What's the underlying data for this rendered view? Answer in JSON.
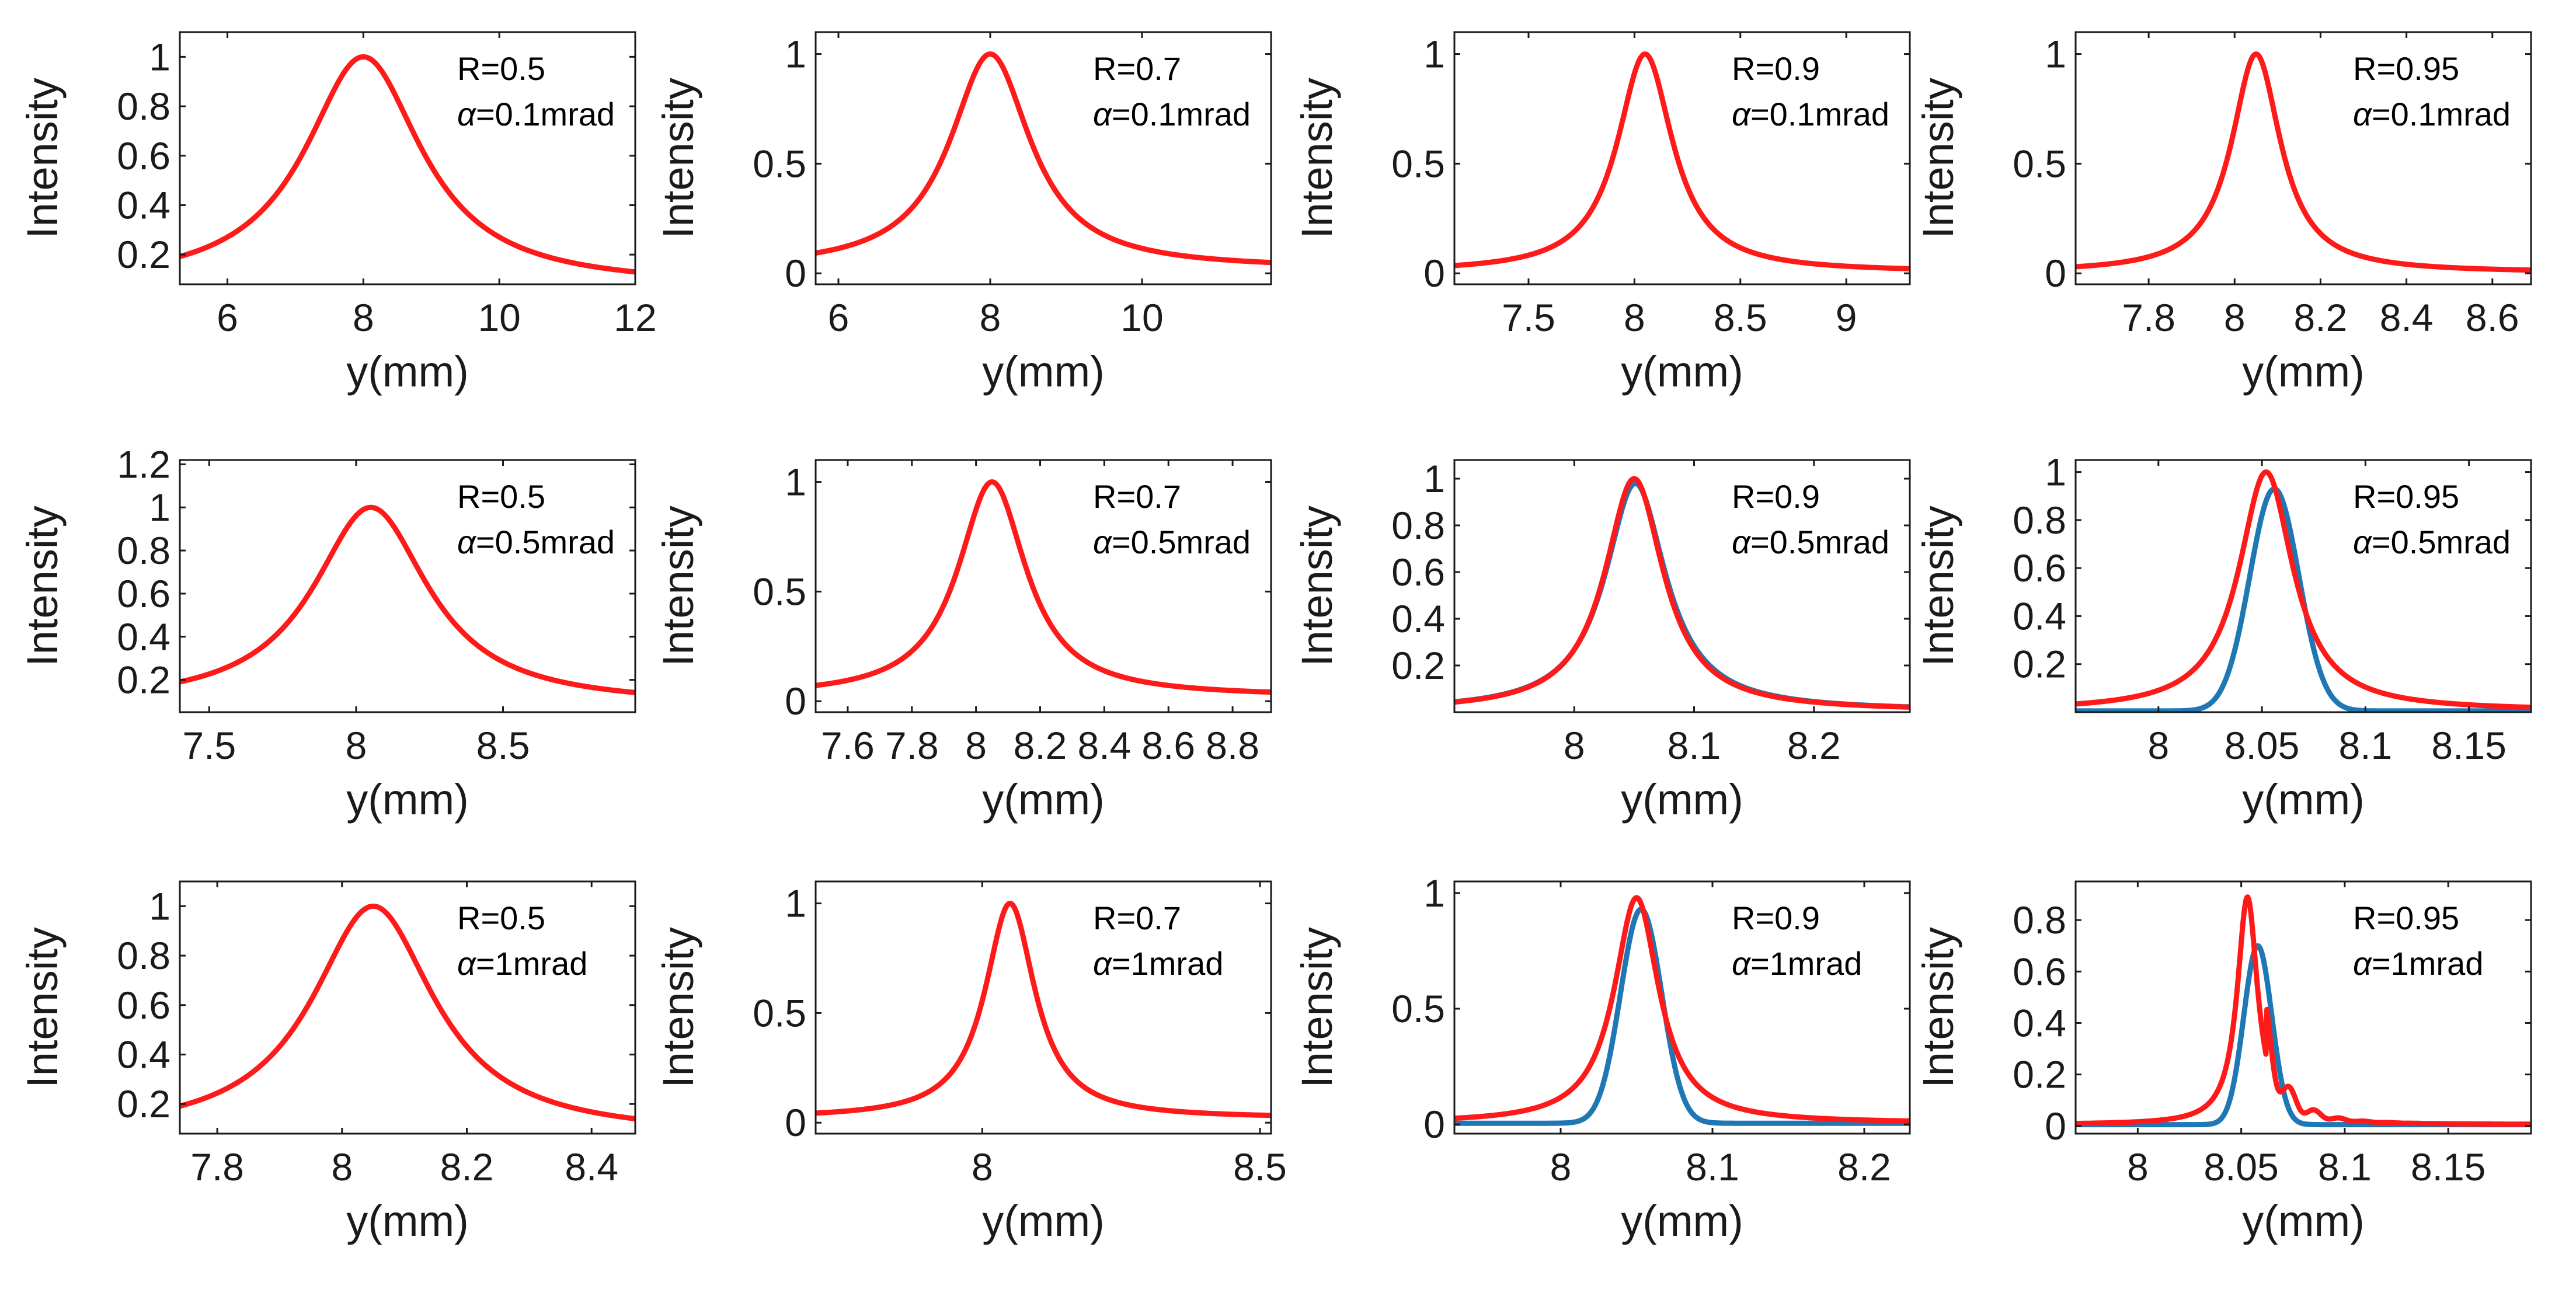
{
  "figure": {
    "colors": {
      "blue": "#1f77b4",
      "red": "#ff1a1a",
      "axis": "#1a1a1a"
    },
    "series_names": [
      "blue",
      "red"
    ]
  },
  "chart_data": [
    {
      "type": "line",
      "row": 0,
      "col": 0,
      "xlabel": "y(mm)",
      "ylabel": "Intensity",
      "xlim": [
        5.3,
        12
      ],
      "ylim": [
        0.08,
        1.1
      ],
      "xticks": [
        6,
        8,
        10,
        12
      ],
      "xtick_labels": [
        "6",
        "8",
        "10",
        "12"
      ],
      "yticks": [
        0.2,
        0.4,
        0.6,
        0.8,
        1
      ],
      "ytick_labels": [
        "0.2",
        "0.4",
        "0.6",
        "0.8",
        "1"
      ],
      "annotation": {
        "R": "R=0.5",
        "alpha": "=0.1mrad"
      },
      "series": [
        {
          "name": "red",
          "center": 8.0,
          "hw": 1.05,
          "peak": 1.0,
          "base": 0.07
        }
      ]
    },
    {
      "type": "line",
      "row": 0,
      "col": 1,
      "xlabel": "y(mm)",
      "ylabel": "Intensity",
      "xlim": [
        5.7,
        11.7
      ],
      "ylim": [
        -0.05,
        1.1
      ],
      "xticks": [
        6,
        8,
        10
      ],
      "xtick_labels": [
        "6",
        "8",
        "10"
      ],
      "yticks": [
        0,
        0.5,
        1
      ],
      "ytick_labels": [
        "0",
        "0.5",
        "1"
      ],
      "annotation": {
        "R": "R=0.7",
        "alpha": "=0.1mrad"
      },
      "series": [
        {
          "name": "red",
          "center": 8.0,
          "hw": 0.65,
          "peak": 1.0,
          "base": 0.02
        }
      ]
    },
    {
      "type": "line",
      "row": 0,
      "col": 2,
      "xlabel": "y(mm)",
      "ylabel": "Intensity",
      "xlim": [
        7.15,
        9.3
      ],
      "ylim": [
        -0.05,
        1.1
      ],
      "xticks": [
        7.5,
        8,
        8.5,
        9
      ],
      "xtick_labels": [
        "7.5",
        "8",
        "8.5",
        "9"
      ],
      "yticks": [
        0,
        0.5,
        1
      ],
      "ytick_labels": [
        "0",
        "0.5",
        "1"
      ],
      "annotation": {
        "R": "R=0.9",
        "alpha": "=0.1mrad"
      },
      "series": [
        {
          "name": "red",
          "center": 8.05,
          "hw": 0.16,
          "peak": 1.0,
          "base": 0.005
        }
      ]
    },
    {
      "type": "line",
      "row": 0,
      "col": 3,
      "xlabel": "y(mm)",
      "ylabel": "Intensity",
      "xlim": [
        7.63,
        8.69
      ],
      "ylim": [
        -0.05,
        1.1
      ],
      "xticks": [
        7.8,
        8,
        8.2,
        8.4,
        8.6
      ],
      "xtick_labels": [
        "7.8",
        "8",
        "8.2",
        "8.4",
        "8.6"
      ],
      "yticks": [
        0,
        0.5,
        1
      ],
      "ytick_labels": [
        "0",
        "0.5",
        "1"
      ],
      "annotation": {
        "R": "R=0.95",
        "alpha": "=0.1mrad"
      },
      "series": [
        {
          "name": "red",
          "center": 8.05,
          "hw": 0.07,
          "peak": 1.0,
          "base": 0.003
        }
      ]
    },
    {
      "type": "line",
      "row": 1,
      "col": 0,
      "xlabel": "y(mm)",
      "ylabel": "Intensity",
      "xlim": [
        7.4,
        8.95
      ],
      "ylim": [
        0.05,
        1.22
      ],
      "xticks": [
        7.5,
        8,
        8.5
      ],
      "xtick_labels": [
        "7.5",
        "8",
        "8.5"
      ],
      "yticks": [
        0.2,
        0.4,
        0.6,
        0.8,
        1,
        1.2
      ],
      "ytick_labels": [
        "0.2",
        "0.4",
        "0.6",
        "0.8",
        "1",
        "1.2"
      ],
      "annotation": {
        "R": "R=0.5",
        "alpha": "=0.5mrad"
      },
      "series": [
        {
          "name": "red",
          "center": 8.05,
          "hw": 0.24,
          "peak": 1.0,
          "base": 0.08
        }
      ]
    },
    {
      "type": "line",
      "row": 1,
      "col": 1,
      "xlabel": "y(mm)",
      "ylabel": "Intensity",
      "xlim": [
        7.5,
        8.92
      ],
      "ylim": [
        -0.05,
        1.1
      ],
      "xticks": [
        7.6,
        7.8,
        8,
        8.2,
        8.4,
        8.6,
        8.8
      ],
      "xtick_labels": [
        "7.6",
        "7.8",
        "8",
        "8.2",
        "8.4",
        "8.6",
        "8.8"
      ],
      "yticks": [
        0,
        0.5,
        1
      ],
      "ytick_labels": [
        "0",
        "0.5",
        "1"
      ],
      "annotation": {
        "R": "R=0.7",
        "alpha": "=0.5mrad"
      },
      "series": [
        {
          "name": "red",
          "center": 8.05,
          "hw": 0.13,
          "peak": 1.0,
          "base": 0.02
        }
      ]
    },
    {
      "type": "line",
      "row": 1,
      "col": 2,
      "xlabel": "y(mm)",
      "ylabel": "Intensity",
      "xlim": [
        7.9,
        8.28
      ],
      "ylim": [
        0.0,
        1.08
      ],
      "xticks": [
        8,
        8.1,
        8.2
      ],
      "xtick_labels": [
        "8",
        "8.1",
        "8.2"
      ],
      "yticks": [
        0.2,
        0.4,
        0.6,
        0.8,
        1
      ],
      "ytick_labels": [
        "0.2",
        "0.4",
        "0.6",
        "0.8",
        "1"
      ],
      "annotation": {
        "R": "R=0.9",
        "alpha": "=0.5mrad"
      },
      "series": [
        {
          "name": "blue",
          "center": 8.051,
          "hw": 0.031,
          "peak": 0.98,
          "base": 0.005
        },
        {
          "name": "red",
          "center": 8.05,
          "hw": 0.03,
          "peak": 1.0,
          "base": 0.005
        }
      ]
    },
    {
      "type": "line",
      "row": 1,
      "col": 3,
      "xlabel": "y(mm)",
      "ylabel": "Intensity",
      "xlim": [
        7.96,
        8.18
      ],
      "ylim": [
        0.0,
        1.05
      ],
      "xticks": [
        8,
        8.05,
        8.1,
        8.15
      ],
      "xtick_labels": [
        "8",
        "8.05",
        "8.1",
        "8.15"
      ],
      "yticks": [
        0.2,
        0.4,
        0.6,
        0.8,
        1
      ],
      "ytick_labels": [
        "0.2",
        "0.4",
        "0.6",
        "0.8",
        "1"
      ],
      "annotation": {
        "R": "R=0.95",
        "alpha": "=0.5mrad"
      },
      "series": [
        {
          "name": "blue",
          "center": 8.056,
          "hw": 0.014,
          "peak": 0.93,
          "base": 0.005,
          "gauss": true
        },
        {
          "name": "red",
          "center": 8.052,
          "hw": 0.016,
          "peak": 1.0,
          "base": 0.005
        }
      ]
    },
    {
      "type": "line",
      "row": 2,
      "col": 0,
      "xlabel": "y(mm)",
      "ylabel": "Intensity",
      "xlim": [
        7.74,
        8.47
      ],
      "ylim": [
        0.08,
        1.1
      ],
      "xticks": [
        7.8,
        8,
        8.2,
        8.4
      ],
      "xtick_labels": [
        "7.8",
        "8",
        "8.2",
        "8.4"
      ],
      "yticks": [
        0.2,
        0.4,
        0.6,
        0.8,
        1
      ],
      "ytick_labels": [
        "0.2",
        "0.4",
        "0.6",
        "0.8",
        "1"
      ],
      "annotation": {
        "R": "R=0.5",
        "alpha": "=1mrad"
      },
      "series": [
        {
          "name": "red",
          "center": 8.05,
          "hw": 0.12,
          "peak": 1.0,
          "base": 0.07
        }
      ]
    },
    {
      "type": "line",
      "row": 2,
      "col": 1,
      "xlabel": "y(mm)",
      "ylabel": "Intensity",
      "xlim": [
        7.7,
        8.52
      ],
      "ylim": [
        -0.05,
        1.1
      ],
      "xticks": [
        8,
        8.5
      ],
      "xtick_labels": [
        "8",
        "8.5"
      ],
      "yticks": [
        0,
        0.5,
        1
      ],
      "ytick_labels": [
        "0",
        "0.5",
        "1"
      ],
      "annotation": {
        "R": "R=0.7",
        "alpha": "=1mrad"
      },
      "series": [
        {
          "name": "red",
          "center": 8.05,
          "hw": 0.055,
          "peak": 1.0,
          "base": 0.02
        }
      ]
    },
    {
      "type": "line",
      "row": 2,
      "col": 2,
      "xlabel": "y(mm)",
      "ylabel": "Intensity",
      "xlim": [
        7.93,
        8.23
      ],
      "ylim": [
        -0.04,
        1.05
      ],
      "xticks": [
        8,
        8.1,
        8.2
      ],
      "xtick_labels": [
        "8",
        "8.1",
        "8.2"
      ],
      "yticks": [
        0,
        0.5,
        1
      ],
      "ytick_labels": [
        "0",
        "0.5",
        "1"
      ],
      "annotation": {
        "R": "R=0.9",
        "alpha": "=1mrad"
      },
      "series": [
        {
          "name": "blue",
          "center": 8.053,
          "hw": 0.016,
          "peak": 0.93,
          "base": 0.005,
          "gauss": true
        },
        {
          "name": "red",
          "center": 8.05,
          "hw": 0.018,
          "peak": 0.98,
          "base": 0.005
        }
      ]
    },
    {
      "type": "line",
      "row": 2,
      "col": 3,
      "xlabel": "y(mm)",
      "ylabel": "Intensity",
      "xlim": [
        7.97,
        8.19
      ],
      "ylim": [
        -0.03,
        0.95
      ],
      "xticks": [
        8,
        8.05,
        8.1,
        8.15
      ],
      "xtick_labels": [
        "8",
        "8.05",
        "8.1",
        "8.15"
      ],
      "yticks": [
        0,
        0.2,
        0.4,
        0.6,
        0.8
      ],
      "ytick_labels": [
        "0",
        "0.2",
        "0.4",
        "0.6",
        "0.8"
      ],
      "annotation": {
        "R": "R=0.95",
        "alpha": "=1mrad"
      },
      "series": [
        {
          "name": "blue",
          "center": 8.058,
          "hw": 0.008,
          "peak": 0.7,
          "base": 0.005,
          "gauss": true
        },
        {
          "name": "red",
          "center": 8.053,
          "hw": 0.006,
          "peak": 0.89,
          "base": 0.005,
          "ripple": true
        }
      ]
    }
  ]
}
